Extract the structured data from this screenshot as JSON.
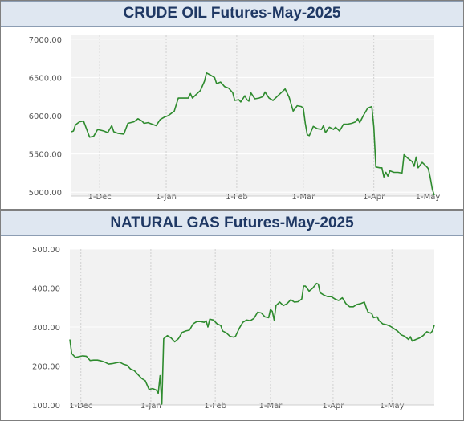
{
  "chart_data": [
    {
      "type": "line",
      "title": "CRUDE OIL Futures-May-2025",
      "xlabel": "",
      "ylabel": "",
      "x_ticks": [
        "1-Dec",
        "1-Jan",
        "1-Feb",
        "1-Mar",
        "1-Apr",
        "1-May"
      ],
      "y_ticks": [
        "7000.00",
        "6500.00",
        "6000.00",
        "5500.00",
        "5000.00"
      ],
      "ylim": [
        4950,
        7050
      ],
      "grid": true,
      "line_color": "#2e8b2e",
      "series": [
        {
          "values": [
            [
              0,
              5790
            ],
            [
              1,
              5800
            ],
            [
              2,
              5880
            ],
            [
              4,
              5920
            ],
            [
              6,
              5930
            ],
            [
              8,
              5790
            ],
            [
              9,
              5720
            ],
            [
              11,
              5730
            ],
            [
              13,
              5820
            ],
            [
              16,
              5800
            ],
            [
              18,
              5780
            ],
            [
              20,
              5870
            ],
            [
              21,
              5790
            ],
            [
              23,
              5770
            ],
            [
              26,
              5760
            ],
            [
              28,
              5900
            ],
            [
              31,
              5920
            ],
            [
              33,
              5960
            ],
            [
              35,
              5930
            ],
            [
              36,
              5900
            ],
            [
              38,
              5910
            ],
            [
              40,
              5890
            ],
            [
              42,
              5870
            ],
            [
              44,
              5950
            ],
            [
              46,
              5980
            ],
            [
              48,
              6000
            ],
            [
              51,
              6060
            ],
            [
              53,
              6230
            ],
            [
              56,
              6230
            ],
            [
              58,
              6230
            ],
            [
              59,
              6290
            ],
            [
              60,
              6230
            ],
            [
              62,
              6280
            ],
            [
              64,
              6330
            ],
            [
              66,
              6450
            ],
            [
              67,
              6560
            ],
            [
              69,
              6530
            ],
            [
              71,
              6500
            ],
            [
              72,
              6420
            ],
            [
              74,
              6440
            ],
            [
              76,
              6380
            ],
            [
              78,
              6360
            ],
            [
              80,
              6300
            ],
            [
              81,
              6200
            ],
            [
              83,
              6210
            ],
            [
              84,
              6180
            ],
            [
              86,
              6260
            ],
            [
              87,
              6210
            ],
            [
              88,
              6190
            ],
            [
              89,
              6300
            ],
            [
              91,
              6220
            ],
            [
              93,
              6230
            ],
            [
              95,
              6250
            ],
            [
              96,
              6310
            ],
            [
              98,
              6230
            ],
            [
              100,
              6200
            ],
            [
              102,
              6250
            ],
            [
              104,
              6300
            ],
            [
              106,
              6350
            ],
            [
              108,
              6240
            ],
            [
              109,
              6150
            ],
            [
              110,
              6060
            ],
            [
              112,
              6130
            ],
            [
              114,
              6120
            ],
            [
              115,
              6100
            ],
            [
              116,
              5900
            ],
            [
              117,
              5750
            ],
            [
              118,
              5740
            ],
            [
              120,
              5860
            ],
            [
              122,
              5830
            ],
            [
              124,
              5820
            ],
            [
              125,
              5870
            ],
            [
              126,
              5780
            ],
            [
              128,
              5850
            ],
            [
              130,
              5820
            ],
            [
              131,
              5850
            ],
            [
              133,
              5800
            ],
            [
              135,
              5890
            ],
            [
              137,
              5890
            ],
            [
              139,
              5900
            ],
            [
              141,
              5920
            ],
            [
              142,
              5960
            ],
            [
              143,
              5910
            ],
            [
              145,
              6010
            ],
            [
              147,
              6100
            ],
            [
              149,
              6120
            ],
            [
              150,
              5850
            ],
            [
              151,
              5330
            ],
            [
              153,
              5320
            ],
            [
              154,
              5320
            ],
            [
              155,
              5200
            ],
            [
              156,
              5260
            ],
            [
              157,
              5210
            ],
            [
              158,
              5280
            ],
            [
              160,
              5260
            ],
            [
              162,
              5260
            ],
            [
              164,
              5250
            ],
            [
              165,
              5490
            ],
            [
              167,
              5440
            ],
            [
              169,
              5400
            ],
            [
              170,
              5340
            ],
            [
              171,
              5460
            ],
            [
              172,
              5320
            ],
            [
              174,
              5390
            ],
            [
              176,
              5340
            ],
            [
              177,
              5310
            ],
            [
              178,
              5190
            ],
            [
              179,
              5040
            ],
            [
              180,
              4960
            ]
          ]
        }
      ]
    },
    {
      "type": "line",
      "title": "NATURAL GAS Futures-May-2025",
      "xlabel": "",
      "ylabel": "",
      "x_ticks": [
        "1-Dec",
        "1-Jan",
        "1-Feb",
        "1-Mar",
        "1-Apr",
        "1-May"
      ],
      "y_ticks": [
        "500.00",
        "400.00",
        "300.00",
        "200.00",
        "100.00"
      ],
      "ylim": [
        100,
        500
      ],
      "grid": true,
      "line_color": "#2e8b2e",
      "series": [
        {
          "values": [
            [
              0,
              268
            ],
            [
              1,
              232
            ],
            [
              3,
              222
            ],
            [
              5,
              224
            ],
            [
              7,
              226
            ],
            [
              9,
              225
            ],
            [
              11,
              214
            ],
            [
              13,
              215
            ],
            [
              15,
              215
            ],
            [
              17,
              213
            ],
            [
              19,
              210
            ],
            [
              21,
              205
            ],
            [
              23,
              206
            ],
            [
              25,
              208
            ],
            [
              27,
              210
            ],
            [
              29,
              205
            ],
            [
              31,
              202
            ],
            [
              33,
              192
            ],
            [
              35,
              188
            ],
            [
              37,
              178
            ],
            [
              39,
              168
            ],
            [
              41,
              162
            ],
            [
              43,
              140
            ],
            [
              44,
              141
            ],
            [
              45,
              142
            ],
            [
              47,
              138
            ],
            [
              48,
              130
            ],
            [
              49,
              175
            ],
            [
              50,
              102
            ],
            [
              51,
              270
            ],
            [
              53,
              278
            ],
            [
              55,
              272
            ],
            [
              57,
              262
            ],
            [
              59,
              270
            ],
            [
              61,
              286
            ],
            [
              63,
              290
            ],
            [
              65,
              292
            ],
            [
              67,
              308
            ],
            [
              69,
              314
            ],
            [
              71,
              314
            ],
            [
              73,
              312
            ],
            [
              74,
              316
            ],
            [
              75,
              300
            ],
            [
              76,
              320
            ],
            [
              78,
              318
            ],
            [
              80,
              308
            ],
            [
              82,
              304
            ],
            [
              83,
              290
            ],
            [
              85,
              285
            ],
            [
              87,
              276
            ],
            [
              89,
              274
            ],
            [
              90,
              276
            ],
            [
              92,
              296
            ],
            [
              94,
              312
            ],
            [
              96,
              318
            ],
            [
              98,
              316
            ],
            [
              100,
              322
            ],
            [
              102,
              338
            ],
            [
              104,
              336
            ],
            [
              106,
              326
            ],
            [
              108,
              324
            ],
            [
              109,
              345
            ],
            [
              110,
              340
            ],
            [
              111,
              318
            ],
            [
              112,
              355
            ],
            [
              114,
              364
            ],
            [
              116,
              355
            ],
            [
              118,
              360
            ],
            [
              120,
              370
            ],
            [
              122,
              364
            ],
            [
              124,
              365
            ],
            [
              126,
              372
            ],
            [
              127,
              405
            ],
            [
              128,
              405
            ],
            [
              130,
              392
            ],
            [
              132,
              400
            ],
            [
              134,
              412
            ],
            [
              135,
              410
            ],
            [
              136,
              388
            ],
            [
              138,
              382
            ],
            [
              140,
              378
            ],
            [
              142,
              378
            ],
            [
              144,
              372
            ],
            [
              146,
              368
            ],
            [
              148,
              375
            ],
            [
              150,
              360
            ],
            [
              152,
              352
            ],
            [
              154,
              352
            ],
            [
              156,
              358
            ],
            [
              158,
              360
            ],
            [
              160,
              364
            ],
            [
              161,
              350
            ],
            [
              162,
              338
            ],
            [
              164,
              335
            ],
            [
              165,
              324
            ],
            [
              167,
              326
            ],
            [
              168,
              316
            ],
            [
              170,
              308
            ],
            [
              172,
              306
            ],
            [
              174,
              302
            ],
            [
              176,
              296
            ],
            [
              178,
              290
            ],
            [
              180,
              280
            ],
            [
              182,
              276
            ],
            [
              184,
              268
            ],
            [
              185,
              275
            ],
            [
              186,
              264
            ],
            [
              188,
              268
            ],
            [
              190,
              272
            ],
            [
              192,
              278
            ],
            [
              194,
              288
            ],
            [
              196,
              284
            ],
            [
              197,
              290
            ],
            [
              198,
              305
            ]
          ]
        }
      ]
    }
  ]
}
